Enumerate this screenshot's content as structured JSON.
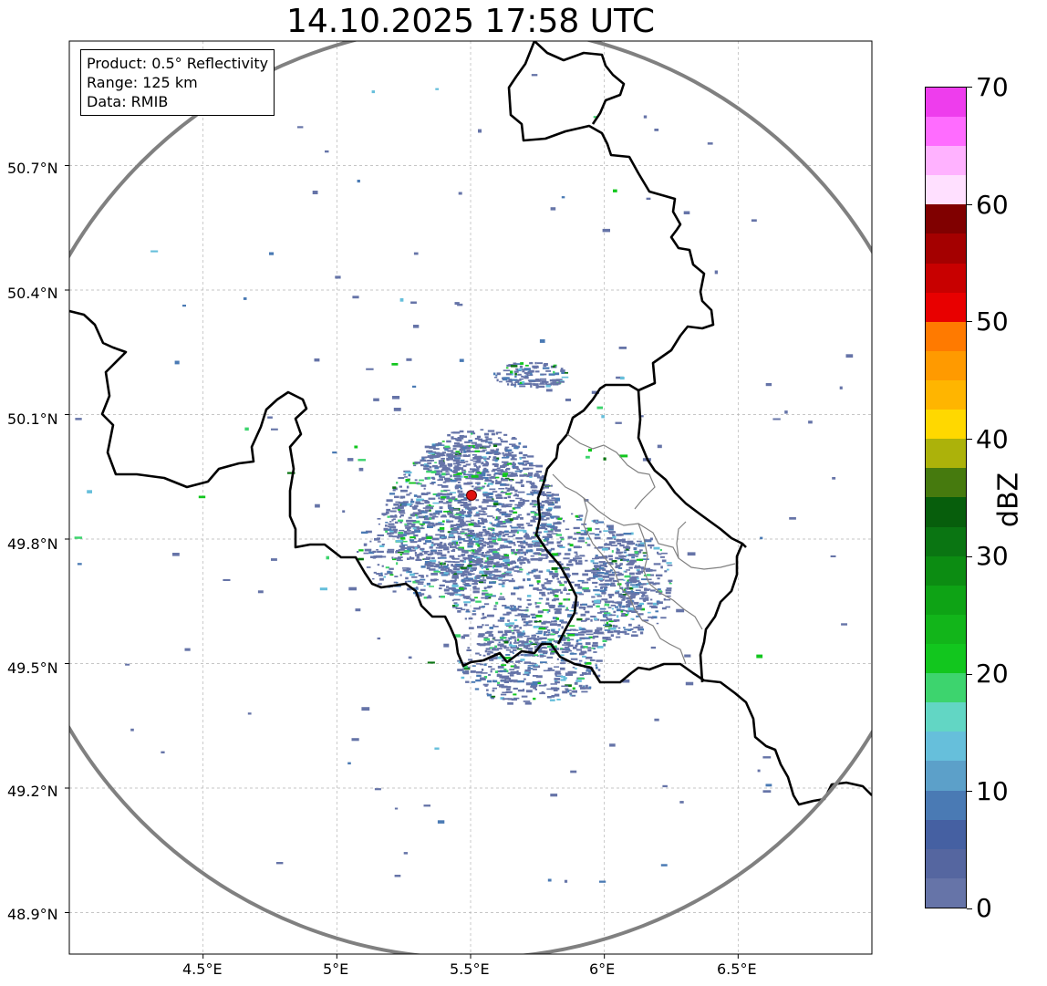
{
  "title": "14.10.2025 17:58 UTC",
  "info": {
    "product": "Product: 0.5° Reflectivity",
    "range": "Range: 125 km",
    "data": "Data: RMIB"
  },
  "axes": {
    "lat_ticks": [
      "50.7°N",
      "50.4°N",
      "50.1°N",
      "49.8°N",
      "49.5°N",
      "49.2°N",
      "48.9°N"
    ],
    "lon_ticks": [
      "4.5°E",
      "5°E",
      "5.5°E",
      "6°E",
      "6.5°E"
    ],
    "lat_values": [
      50.7,
      50.4,
      50.1,
      49.8,
      49.5,
      49.2,
      48.9
    ],
    "lon_values": [
      4.5,
      5.0,
      5.5,
      6.0,
      6.5
    ],
    "lat_range": [
      48.8,
      51.0
    ],
    "lon_range": [
      4.0,
      7.0
    ],
    "grid": true
  },
  "radar_site": {
    "lon": 5.505,
    "lat": 49.914
  },
  "range_ring_km": 125,
  "colorbar": {
    "label": "dBZ",
    "ticks": [
      "0",
      "10",
      "20",
      "30",
      "40",
      "50",
      "60",
      "70"
    ],
    "min": 0,
    "max": 70,
    "colors": [
      "#6674a8",
      "#5566a0",
      "#4560a2",
      "#4a7ab4",
      "#5ca0c9",
      "#66bfdb",
      "#62d6c4",
      "#3dd46e",
      "#12c61e",
      "#12b51a",
      "#0ea315",
      "#0c8c12",
      "#0a7512",
      "#075e0c",
      "#467a0e",
      "#acb20a",
      "#ffd800",
      "#ffb500",
      "#ff9a00",
      "#ff7a00",
      "#e80000",
      "#c80000",
      "#a40000",
      "#800000",
      "#ffe0ff",
      "#ffb2ff",
      "#ff6cff",
      "#ee3ded"
    ]
  },
  "colors": {
    "border": "#000000",
    "inner_border": "#888888",
    "range_ring": "#808080",
    "grid": "#b4b4b4",
    "site": "#e01010"
  }
}
